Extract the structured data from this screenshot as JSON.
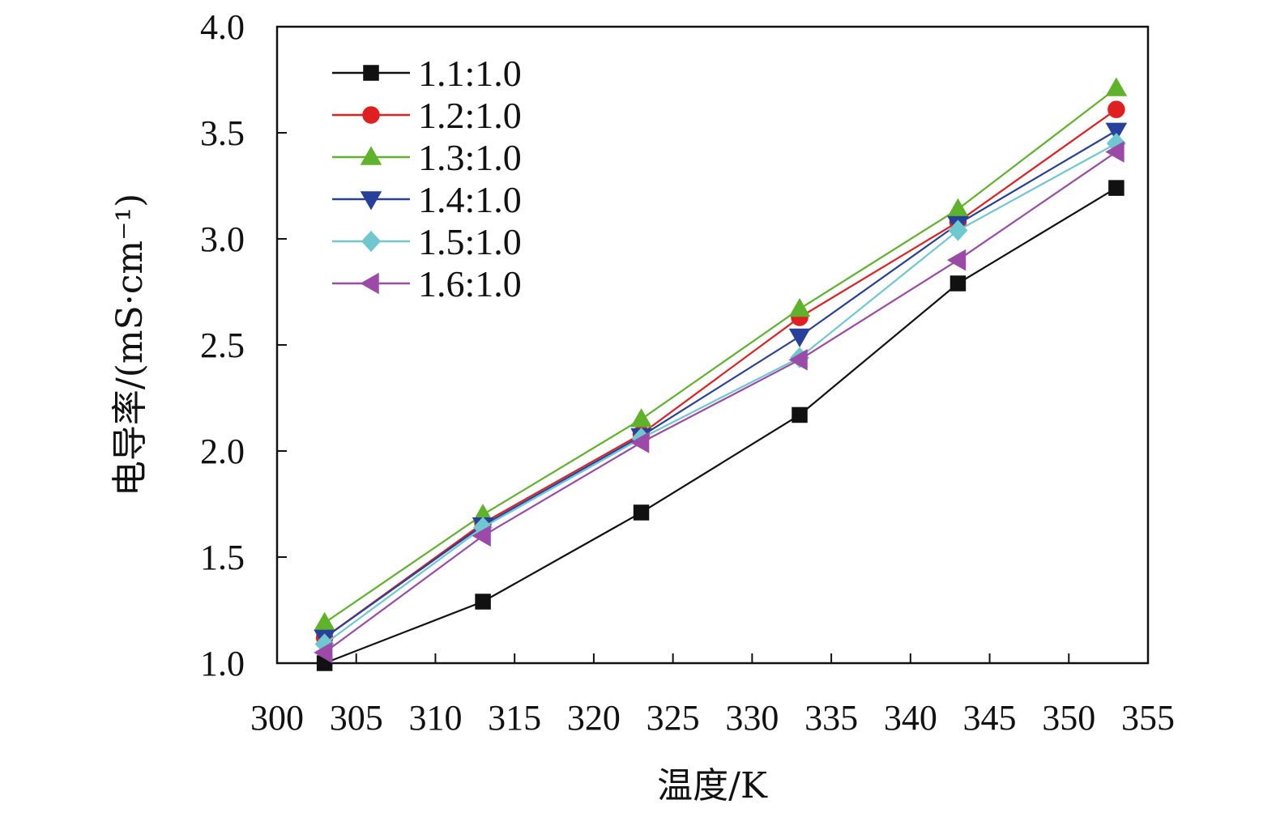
{
  "chart_data": {
    "type": "line",
    "title": "",
    "xlabel": "温度/K",
    "ylabel": "电导率/(mS·cm⁻¹)",
    "xlim": [
      300,
      355
    ],
    "ylim": [
      1.0,
      4.0
    ],
    "x_ticks": [
      "300",
      "305",
      "310",
      "315",
      "320",
      "325",
      "330",
      "335",
      "340",
      "345",
      "350",
      "355"
    ],
    "y_ticks": [
      "1.0",
      "1.5",
      "2.0",
      "2.5",
      "3.0",
      "3.5",
      "4.0"
    ],
    "grid": false,
    "legend_position": "top-left",
    "x": [
      303,
      313,
      323,
      333,
      343,
      353
    ],
    "series": [
      {
        "name": "1.1:1.0",
        "color": "#111111",
        "marker": "square",
        "values": [
          1.0,
          1.29,
          1.71,
          2.17,
          2.79,
          3.24
        ]
      },
      {
        "name": "1.2:1.0",
        "color": "#e02020",
        "marker": "circle",
        "values": [
          1.12,
          1.66,
          2.08,
          2.63,
          3.08,
          3.61
        ]
      },
      {
        "name": "1.3:1.0",
        "color": "#5fb32a",
        "marker": "triangle-up",
        "values": [
          1.19,
          1.7,
          2.15,
          2.67,
          3.14,
          3.71
        ]
      },
      {
        "name": "1.4:1.0",
        "color": "#27409a",
        "marker": "triangle-down",
        "values": [
          1.12,
          1.65,
          2.07,
          2.54,
          3.07,
          3.51
        ]
      },
      {
        "name": "1.5:1.0",
        "color": "#6fc7cf",
        "marker": "diamond",
        "values": [
          1.09,
          1.64,
          2.06,
          2.44,
          3.04,
          3.45
        ]
      },
      {
        "name": "1.6:1.0",
        "color": "#9b4aa8",
        "marker": "triangle-left",
        "values": [
          1.05,
          1.6,
          2.04,
          2.43,
          2.9,
          3.41
        ]
      }
    ]
  }
}
